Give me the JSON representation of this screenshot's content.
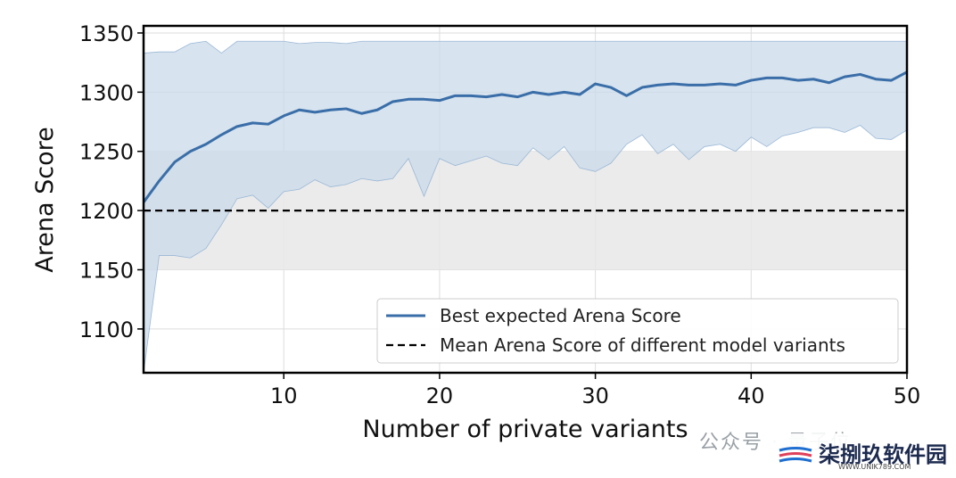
{
  "chart_data": {
    "type": "line",
    "title": "",
    "xlabel": "Number of private variants",
    "ylabel": "Arena Score",
    "xlim": [
      1,
      50
    ],
    "ylim": [
      1063,
      1356
    ],
    "x_ticks": [
      10,
      20,
      30,
      40,
      50
    ],
    "y_ticks": [
      1100,
      1150,
      1200,
      1250,
      1300,
      1350
    ],
    "grid": true,
    "legend_position": "lower-right",
    "reference_band": {
      "lower": 1150,
      "upper": 1250,
      "color": "#e8e8e8"
    },
    "reference_line": {
      "y": 1200,
      "name": "Mean Arena Score of different model variants",
      "style": "dashed",
      "color": "#000000"
    },
    "series": [
      {
        "name": "Best expected Arena Score",
        "color": "#3a6ea8",
        "band_color": "#c9d9ea",
        "x": [
          1,
          2,
          3,
          4,
          5,
          6,
          7,
          8,
          9,
          10,
          11,
          12,
          13,
          14,
          15,
          16,
          17,
          18,
          19,
          20,
          21,
          22,
          23,
          24,
          25,
          26,
          27,
          28,
          29,
          30,
          31,
          32,
          33,
          34,
          35,
          36,
          37,
          38,
          39,
          40,
          41,
          42,
          43,
          44,
          45,
          46,
          47,
          48,
          49,
          50
        ],
        "values": [
          1207,
          1225,
          1241,
          1250,
          1256,
          1264,
          1271,
          1274,
          1273,
          1280,
          1285,
          1283,
          1285,
          1286,
          1282,
          1285,
          1292,
          1294,
          1294,
          1293,
          1297,
          1297,
          1296,
          1298,
          1296,
          1300,
          1298,
          1300,
          1298,
          1307,
          1304,
          1297,
          1304,
          1306,
          1307,
          1306,
          1306,
          1307,
          1306,
          1310,
          1312,
          1312,
          1310,
          1311,
          1308,
          1313,
          1315,
          1311,
          1310,
          1317
        ],
        "upper": [
          1333,
          1334,
          1334,
          1341,
          1343,
          1333,
          1343,
          1343,
          1343,
          1343,
          1341,
          1342,
          1342,
          1341,
          1343,
          1343,
          1343,
          1343,
          1343,
          1343,
          1343,
          1343,
          1343,
          1343,
          1343,
          1343,
          1343,
          1343,
          1343,
          1343,
          1343,
          1343,
          1343,
          1343,
          1343,
          1343,
          1343,
          1343,
          1343,
          1343,
          1343,
          1343,
          1343,
          1343,
          1343,
          1343,
          1343,
          1343,
          1343,
          1343
        ],
        "lower": [
          1063,
          1162,
          1162,
          1160,
          1168,
          1188,
          1210,
          1213,
          1202,
          1216,
          1218,
          1226,
          1220,
          1222,
          1227,
          1225,
          1227,
          1244,
          1212,
          1244,
          1238,
          1242,
          1246,
          1240,
          1238,
          1253,
          1243,
          1254,
          1236,
          1233,
          1240,
          1256,
          1264,
          1248,
          1256,
          1243,
          1254,
          1256,
          1250,
          1262,
          1254,
          1263,
          1266,
          1270,
          1270,
          1266,
          1272,
          1261,
          1260,
          1268
        ]
      }
    ]
  },
  "watermark": {
    "left_text": "公众号 · 量子位",
    "brand": "柒捌玖软件园",
    "url": "WWW.UNIK789.COM"
  }
}
